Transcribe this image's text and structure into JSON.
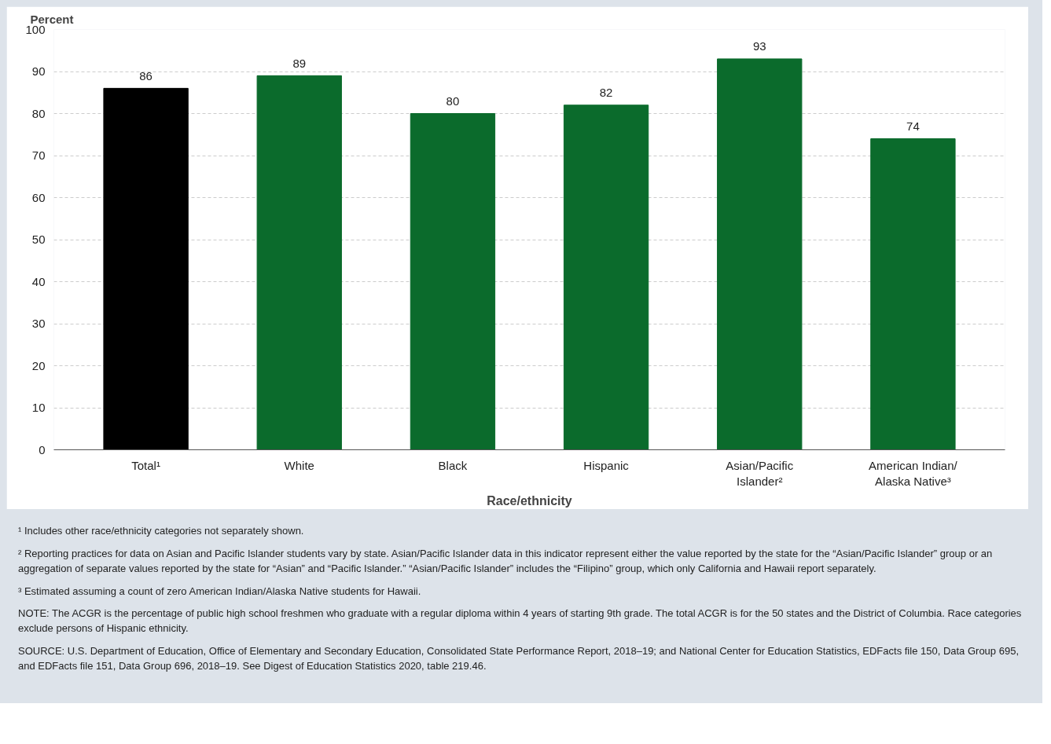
{
  "chart_data": {
    "type": "bar",
    "xlabel": "Race/ethnicity",
    "ylabel": "Percent",
    "categories": [
      "Total¹",
      "White",
      "Black",
      "Hispanic",
      "Asian/Pacific Islander²",
      "American Indian/ Alaska Native³"
    ],
    "values": [
      86,
      89,
      80,
      82,
      93,
      74
    ],
    "colors": [
      "#000000",
      "#0b6b2c",
      "#0b6b2c",
      "#0b6b2c",
      "#0b6b2c",
      "#0b6b2c"
    ],
    "ylim": [
      0,
      100
    ],
    "yticks": [
      0,
      10,
      20,
      30,
      40,
      50,
      60,
      70,
      80,
      90,
      100
    ],
    "grid": "y",
    "data_labels": true,
    "annotations": [
      "¹ Includes other race/ethnicity categories not separately shown.",
      "² Reporting practices for data on Asian and Pacific Islander students vary by state. Asian/Pacific Islander data in this indicator represent either the value reported by the state for the “Asian/Pacific Islander” group or an aggregation of separate values reported by the state for “Asian” and “Pacific Islander.” “Asian/Pacific Islander” includes the “Filipino” group, which only California and Hawaii report separately.",
      "³ Estimated assuming a count of zero American Indian/Alaska Native students for Hawaii.",
      "NOTE: The ACGR is the percentage of public high school freshmen who graduate with a regular diploma within 4 years of starting 9th grade. The total ACGR is for the 50 states and the District of Columbia. Race categories exclude persons of Hispanic ethnicity.",
      "SOURCE: U.S. Department of Education, Office of Elementary and Secondary Education, Consolidated State Performance Report, 2018–19; and National Center for Education Statistics, EDFacts file 150, Data Group 695, and EDFacts file 151, Data Group 696, 2018–19. See Digest of Education Statistics 2020, table 219.46."
    ]
  }
}
